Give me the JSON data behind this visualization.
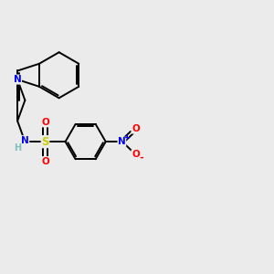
{
  "background_color": "#ebebeb",
  "bond_color": "#000000",
  "atom_colors": {
    "N": "#0000ff",
    "S": "#cccc00",
    "O": "#ff0000",
    "H": "#7fbfbf",
    "C": "#000000"
  },
  "figsize": [
    3.0,
    3.0
  ],
  "dpi": 100
}
